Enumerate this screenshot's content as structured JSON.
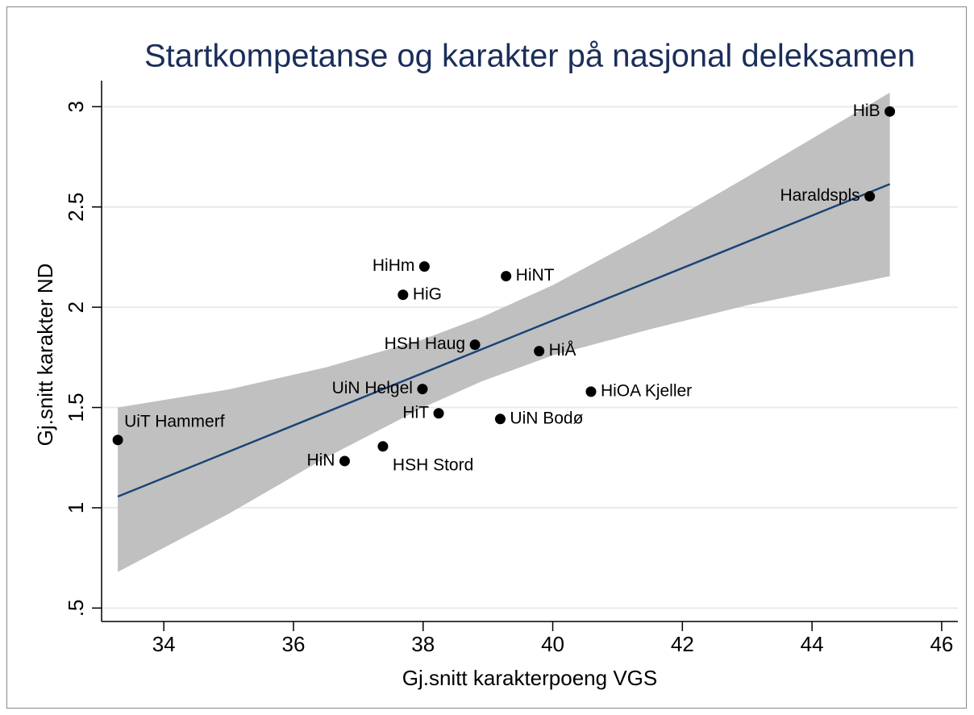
{
  "chart_data": {
    "type": "scatter",
    "title": "Startkompetanse og karakter på nasjonal deleksamen",
    "x_label": "Gj.snitt karakterpoeng VGS",
    "y_label": "Gj.snitt karakter ND",
    "xlim": [
      33.04,
      46.25
    ],
    "ylim": [
      0.433,
      3.13
    ],
    "xticks": [
      34,
      36,
      38,
      40,
      42,
      44,
      46
    ],
    "yticks": [
      {
        "value": 0.5,
        "label": ".5"
      },
      1,
      1.5,
      2,
      2.5,
      3
    ],
    "grid": true,
    "color": "#000000",
    "labels": [
      "HiB",
      "Haraldspls",
      "HiHm",
      "HiNT",
      "HiG",
      "HSH Haug",
      "HiÅ",
      "UiN Helgel",
      "HiOA Kjeller",
      "HiT",
      "UiN Bodø",
      "UiT Hammerf",
      "HSH Stord",
      "HiN"
    ],
    "label_positions": [
      9,
      9,
      9,
      3,
      3,
      9,
      3,
      9,
      3,
      9,
      3,
      1,
      5,
      9
    ],
    "x": [
      45.2,
      44.89,
      38.02,
      39.28,
      37.69,
      38.8,
      39.79,
      37.99,
      40.59,
      38.24,
      39.19,
      33.29,
      37.38,
      36.79
    ],
    "values": [
      2.976,
      2.553,
      2.203,
      2.155,
      2.062,
      1.813,
      1.781,
      1.592,
      1.579,
      1.471,
      1.443,
      1.338,
      1.306,
      1.233
    ],
    "fit": {
      "color": "#1a4477",
      "x": [
        33.29,
        45.2
      ],
      "values": [
        1.056,
        2.614
      ]
    },
    "ci": {
      "color": "#c0c0c0",
      "x": [
        33.29,
        35,
        36.5,
        38,
        38.9,
        40,
        41.5,
        43,
        45.2
      ],
      "lower": [
        0.68,
        0.97,
        1.25,
        1.5,
        1.63,
        1.76,
        1.89,
        2.01,
        2.155
      ],
      "upper": [
        1.5,
        1.59,
        1.7,
        1.84,
        1.95,
        2.11,
        2.37,
        2.65,
        3.07
      ]
    }
  }
}
